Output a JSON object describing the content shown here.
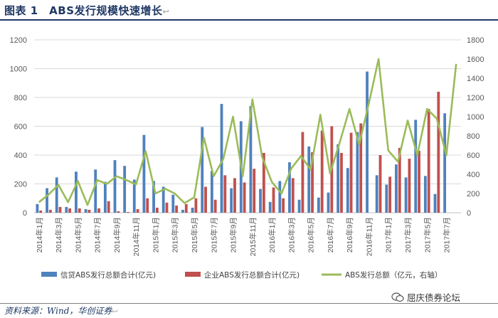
{
  "title": "图表 1　ABS发行规模快速增长",
  "title_mark": "↩",
  "source": "资料来源：Wind，华创证券",
  "source_mark": "↩",
  "watermark": "屈庆债券论坛",
  "chart_data": {
    "type": "bar",
    "categories": [
      "2014年1月",
      "2014年2月",
      "2014年3月",
      "2014年4月",
      "2014年5月",
      "2014年6月",
      "2014年7月",
      "2014年8月",
      "2014年9月",
      "2014年10月",
      "2014年11月",
      "2014年12月",
      "2015年1月",
      "2015年2月",
      "2015年3月",
      "2015年4月",
      "2015年5月",
      "2015年6月",
      "2015年7月",
      "2015年8月",
      "2015年9月",
      "2015年10月",
      "2015年11月",
      "2015年12月",
      "2016年1月",
      "2016年2月",
      "2016年3月",
      "2016年4月",
      "2016年5月",
      "2016年6月",
      "2016年7月",
      "2016年8月",
      "2016年9月",
      "2016年10月",
      "2016年11月",
      "2016年12月",
      "2017年1月",
      "2017年2月",
      "2017年3月",
      "2017年4月",
      "2017年5月",
      "2017年6月",
      "2017年7月",
      "2017年8月"
    ],
    "x_tick_labels": [
      "2014年1月",
      "2014年3月",
      "2014年5月",
      "2014年7月",
      "2014年9月",
      "2014年11月",
      "2015年1月",
      "2015年3月",
      "2015年5月",
      "2015年7月",
      "2015年9月",
      "2015年11月",
      "2016年1月",
      "2016年3月",
      "2016年5月",
      "2016年7月",
      "2016年9月",
      "2016年11月",
      "2017年1月",
      "2017年3月",
      "2017年5月",
      "2017年7月"
    ],
    "series": [
      {
        "name": "信贷ABS发行总额合计(亿元)",
        "axis": "left",
        "kind": "bar",
        "color": "#4f81bd",
        "values": [
          60,
          170,
          245,
          40,
          285,
          25,
          300,
          215,
          365,
          325,
          230,
          540,
          220,
          180,
          125,
          20,
          35,
          595,
          290,
          755,
          170,
          635,
          740,
          165,
          75,
          220,
          350,
          90,
          460,
          105,
          140,
          475,
          310,
          560,
          980,
          260,
          195,
          335,
          245,
          645,
          255,
          130,
          690,
          0
        ]
      },
      {
        "name": "企业ABS发行总额合计(亿元)",
        "axis": "left",
        "kind": "bar",
        "color": "#c0504d",
        "values": [
          15,
          20,
          40,
          30,
          30,
          20,
          30,
          80,
          10,
          5,
          25,
          100,
          35,
          70,
          50,
          60,
          100,
          180,
          90,
          260,
          240,
          210,
          305,
          415,
          175,
          100,
          240,
          560,
          420,
          570,
          600,
          415,
          555,
          620,
          0,
          400,
          250,
          450,
          375,
          430,
          720,
          840,
          0,
          0
        ]
      },
      {
        "name": "ABS发行总额（亿元，右轴）",
        "axis": "right",
        "kind": "line",
        "color": "#9bbb59",
        "values": [
          110,
          190,
          290,
          110,
          330,
          80,
          340,
          300,
          380,
          340,
          295,
          640,
          200,
          250,
          200,
          100,
          160,
          780,
          380,
          560,
          1000,
          380,
          1180,
          580,
          320,
          200,
          460,
          590,
          450,
          1020,
          410,
          730,
          1080,
          710,
          1140,
          1600,
          650,
          530,
          960,
          600,
          1080,
          980,
          600,
          1550
        ]
      }
    ],
    "left_axis": {
      "min": 0,
      "max": 1200,
      "ticks": [
        "0",
        "200",
        "400",
        "600",
        "800",
        "1000",
        "1200"
      ]
    },
    "right_axis": {
      "min": 0,
      "max": 1800,
      "ticks": [
        "0",
        "200",
        "400",
        "600",
        "800",
        "1000",
        "1200",
        "1400",
        "1600",
        "1800"
      ]
    },
    "grid": true,
    "legend_position": "bottom"
  }
}
